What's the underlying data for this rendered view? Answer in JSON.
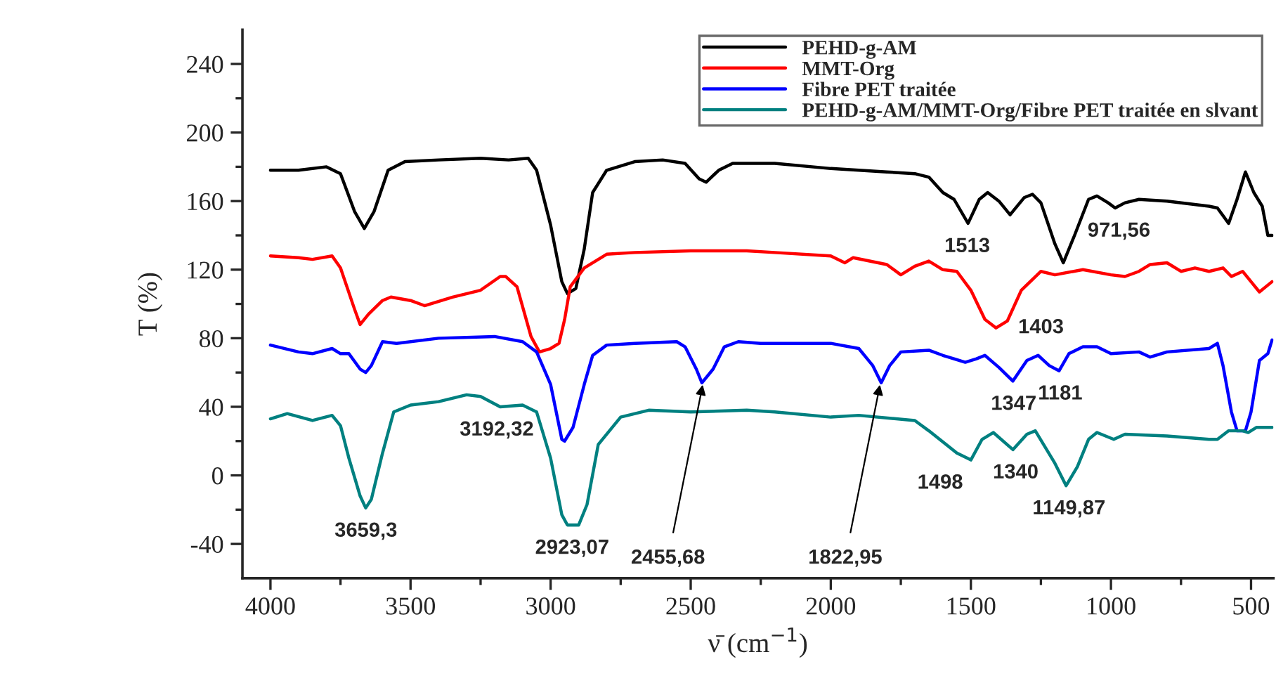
{
  "chart_data": {
    "type": "line",
    "xlabel": "ν̄ (cm$^{−1}$)",
    "ylabel": "T (%)",
    "xlim": [
      4100,
      420
    ],
    "ylim": [
      -60,
      260
    ],
    "xticks": [
      4000,
      3500,
      3000,
      2500,
      2000,
      1500,
      1000,
      500
    ],
    "yticks": [
      -40,
      0,
      40,
      80,
      120,
      160,
      200,
      240
    ],
    "grid": false,
    "legend": "top right",
    "series": [
      {
        "name": "PEHD-g-AM",
        "color": "#000000",
        "x": [
          4000,
          3900,
          3800,
          3750,
          3700,
          3665,
          3630,
          3580,
          3520,
          3400,
          3250,
          3150,
          3080,
          3050,
          3000,
          2960,
          2940,
          2910,
          2880,
          2850,
          2800,
          2700,
          2600,
          2520,
          2470,
          2445,
          2400,
          2350,
          2200,
          2000,
          1800,
          1700,
          1650,
          1600,
          1560,
          1510,
          1470,
          1440,
          1400,
          1360,
          1310,
          1280,
          1250,
          1200,
          1170,
          1130,
          1080,
          1050,
          1010,
          985,
          950,
          900,
          800,
          650,
          620,
          580,
          550,
          520,
          490,
          460,
          440,
          425
        ],
        "values": [
          178,
          178,
          180,
          176,
          154,
          144,
          154,
          178,
          183,
          184,
          185,
          184,
          185,
          178,
          146,
          113,
          106,
          109,
          132,
          165,
          178,
          183,
          184,
          182,
          173,
          171,
          178,
          182,
          182,
          179,
          177,
          176,
          174,
          165,
          161,
          147,
          161,
          165,
          160,
          152,
          162,
          164,
          159,
          135,
          124,
          140,
          161,
          163,
          159,
          156,
          159,
          161,
          160,
          157,
          156,
          147,
          161,
          177,
          165,
          157,
          140,
          140
        ]
      },
      {
        "name": "MMT-Org",
        "color": "#ff0000",
        "x": [
          4000,
          3900,
          3850,
          3780,
          3750,
          3700,
          3680,
          3650,
          3600,
          3570,
          3500,
          3450,
          3350,
          3250,
          3180,
          3160,
          3120,
          3070,
          3040,
          3000,
          2970,
          2950,
          2930,
          2880,
          2800,
          2700,
          2500,
          2300,
          2200,
          2000,
          1950,
          1920,
          1800,
          1750,
          1700,
          1650,
          1600,
          1550,
          1500,
          1450,
          1410,
          1370,
          1320,
          1250,
          1200,
          1100,
          1000,
          950,
          900,
          860,
          800,
          750,
          700,
          650,
          600,
          570,
          530,
          500,
          470,
          425
        ],
        "values": [
          128,
          127,
          126,
          128,
          121,
          97,
          88,
          94,
          102,
          104,
          102,
          99,
          104,
          108,
          116,
          116,
          110,
          81,
          72,
          74,
          77,
          91,
          110,
          121,
          129,
          130,
          131,
          131,
          130,
          128,
          124,
          127,
          123,
          117,
          122,
          125,
          120,
          119,
          108,
          91,
          86,
          90,
          108,
          119,
          117,
          120,
          117,
          116,
          119,
          123,
          124,
          119,
          121,
          119,
          121,
          116,
          119,
          113,
          107,
          113
        ]
      },
      {
        "name": "Fibre PET traitée",
        "color": "#0000ff",
        "x": [
          4000,
          3900,
          3850,
          3780,
          3750,
          3720,
          3680,
          3660,
          3640,
          3600,
          3550,
          3400,
          3200,
          3100,
          3050,
          3000,
          2960,
          2950,
          2920,
          2880,
          2850,
          2800,
          2700,
          2550,
          2520,
          2480,
          2460,
          2420,
          2380,
          2330,
          2250,
          2000,
          1900,
          1850,
          1820,
          1790,
          1750,
          1650,
          1600,
          1520,
          1480,
          1450,
          1400,
          1350,
          1300,
          1260,
          1220,
          1185,
          1150,
          1100,
          1050,
          1000,
          900,
          860,
          800,
          650,
          620,
          600,
          570,
          550,
          520,
          500,
          470,
          440,
          425
        ],
        "values": [
          76,
          72,
          71,
          74,
          71,
          71,
          62,
          60,
          64,
          78,
          77,
          80,
          81,
          78,
          72,
          53,
          21,
          20,
          28,
          53,
          70,
          76,
          77,
          78,
          75,
          62,
          54,
          62,
          75,
          78,
          77,
          77,
          74,
          64,
          54,
          64,
          72,
          73,
          70,
          66,
          68,
          70,
          63,
          55,
          67,
          70,
          64,
          61,
          71,
          75,
          75,
          71,
          72,
          69,
          72,
          74,
          77,
          64,
          37,
          26,
          26,
          37,
          67,
          71,
          79
        ]
      },
      {
        "name": "PEHD-g-AM/MMT-Org/Fibre PET traitée en slvant",
        "color": "#008080",
        "x": [
          4000,
          3940,
          3850,
          3780,
          3750,
          3720,
          3680,
          3660,
          3640,
          3600,
          3560,
          3500,
          3400,
          3300,
          3250,
          3180,
          3100,
          3050,
          3000,
          2960,
          2940,
          2900,
          2870,
          2830,
          2750,
          2650,
          2500,
          2300,
          2200,
          2000,
          1900,
          1700,
          1650,
          1550,
          1500,
          1460,
          1420,
          1350,
          1300,
          1270,
          1200,
          1160,
          1120,
          1080,
          1050,
          990,
          950,
          800,
          650,
          620,
          580,
          530,
          510,
          480,
          425
        ],
        "values": [
          33,
          36,
          32,
          35,
          29,
          10,
          -12,
          -19,
          -14,
          13,
          37,
          41,
          43,
          47,
          46,
          40,
          41,
          37,
          10,
          -23,
          -29,
          -29,
          -17,
          18,
          34,
          38,
          37,
          38,
          37,
          34,
          35,
          32,
          26,
          13,
          9,
          21,
          25,
          15,
          24,
          26,
          7,
          -6,
          5,
          21,
          25,
          21,
          24,
          23,
          21,
          21,
          26,
          26,
          25,
          28,
          28
        ]
      }
    ],
    "annotations": [
      {
        "text": "3659,3",
        "x": 3659.3,
        "y": -19
      },
      {
        "text": "3192,32",
        "x": 3192.32,
        "y": 40
      },
      {
        "text": "2923,07",
        "x": 2923.07,
        "y": -29
      },
      {
        "text": "2455,68",
        "x": 2455.68,
        "y": 54
      },
      {
        "text": "1822,95",
        "x": 1822.95,
        "y": 54
      },
      {
        "text": "1513",
        "x": 1513,
        "y": 147
      },
      {
        "text": "971,56",
        "x": 971.56,
        "y": 156
      },
      {
        "text": "1403",
        "x": 1403,
        "y": 86
      },
      {
        "text": "1347",
        "x": 1347,
        "y": 55
      },
      {
        "text": "1181",
        "x": 1181,
        "y": 61
      },
      {
        "text": "1340",
        "x": 1340,
        "y": 15
      },
      {
        "text": "1149,87",
        "x": 1149.87,
        "y": -6
      },
      {
        "text": "1498",
        "x": 1498,
        "y": 9
      }
    ]
  }
}
